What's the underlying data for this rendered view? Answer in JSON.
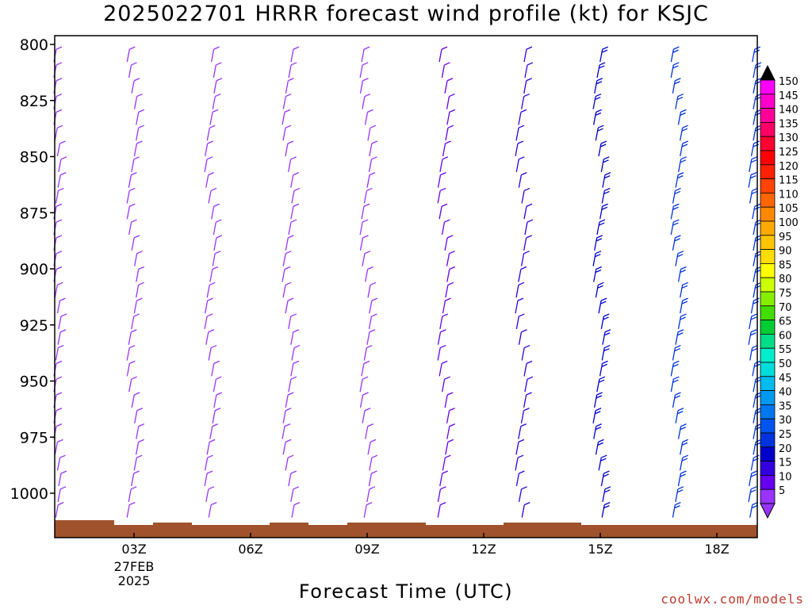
{
  "title": "2025022701 HRRR forecast wind profile (kt) for KSJC",
  "xlabel": "Forecast Time (UTC)",
  "credit": "coolwx.com/models",
  "colors": {
    "terrain": "#a0522d",
    "frame": "#000000",
    "credit": "#c0392b"
  },
  "chart_data": {
    "type": "wind-barb-profile",
    "title": "2025022701 HRRR forecast wind profile (kt) for KSJC",
    "xlabel": "Forecast Time (UTC)",
    "ylabel": "",
    "y_axis": {
      "ticks": [
        800,
        825,
        850,
        875,
        900,
        925,
        950,
        975,
        1000
      ],
      "range": [
        1020,
        800
      ]
    },
    "x_axis": {
      "ticks": [
        {
          "label": "03Z",
          "sub": [
            "27FEB",
            "2025"
          ],
          "hour": 3
        },
        {
          "label": "06Z",
          "hour": 6
        },
        {
          "label": "09Z",
          "hour": 9
        },
        {
          "label": "12Z",
          "hour": 12
        },
        {
          "label": "15Z",
          "hour": 15
        },
        {
          "label": "18Z",
          "hour": 18
        }
      ],
      "range_hours": [
        1,
        19
      ]
    },
    "profiles": [
      {
        "hour": 1,
        "speed_kt": 8
      },
      {
        "hour": 3,
        "speed_kt": 7
      },
      {
        "hour": 5,
        "speed_kt": 7
      },
      {
        "hour": 7,
        "speed_kt": 8
      },
      {
        "hour": 9,
        "speed_kt": 8
      },
      {
        "hour": 11,
        "speed_kt": 10
      },
      {
        "hour": 13,
        "speed_kt": 15
      },
      {
        "hour": 15,
        "speed_kt": 22
      },
      {
        "hour": 17,
        "speed_kt": 27
      },
      {
        "hour": 19,
        "speed_kt": 27
      }
    ],
    "colorbar": {
      "labels": [
        "150",
        "145",
        "140",
        "135",
        "130",
        "125",
        "120",
        "115",
        "110",
        "105",
        "100",
        "95",
        "90",
        "85",
        "80",
        "75",
        "70",
        "65",
        "60",
        "55",
        "50",
        "45",
        "40",
        "35",
        "30",
        "25",
        "20",
        "15",
        "10",
        "5"
      ],
      "colors": [
        "#ff00ff",
        "#ff00cc",
        "#ff0099",
        "#ff0066",
        "#ff0033",
        "#ff0000",
        "#ff2200",
        "#ff4400",
        "#ff6600",
        "#ff8800",
        "#ffaa00",
        "#ffc400",
        "#ffdd00",
        "#ffff00",
        "#ccff00",
        "#88ee00",
        "#44dd00",
        "#00cc33",
        "#00dd88",
        "#00eecc",
        "#00dddd",
        "#00bbee",
        "#0099ee",
        "#0077ee",
        "#0055ee",
        "#0033dd",
        "#0000cc",
        "#3300dd",
        "#6600ee",
        "#9933ff"
      ],
      "top_arrow": "#000000",
      "bottom_arrow": "#9933ff"
    }
  }
}
